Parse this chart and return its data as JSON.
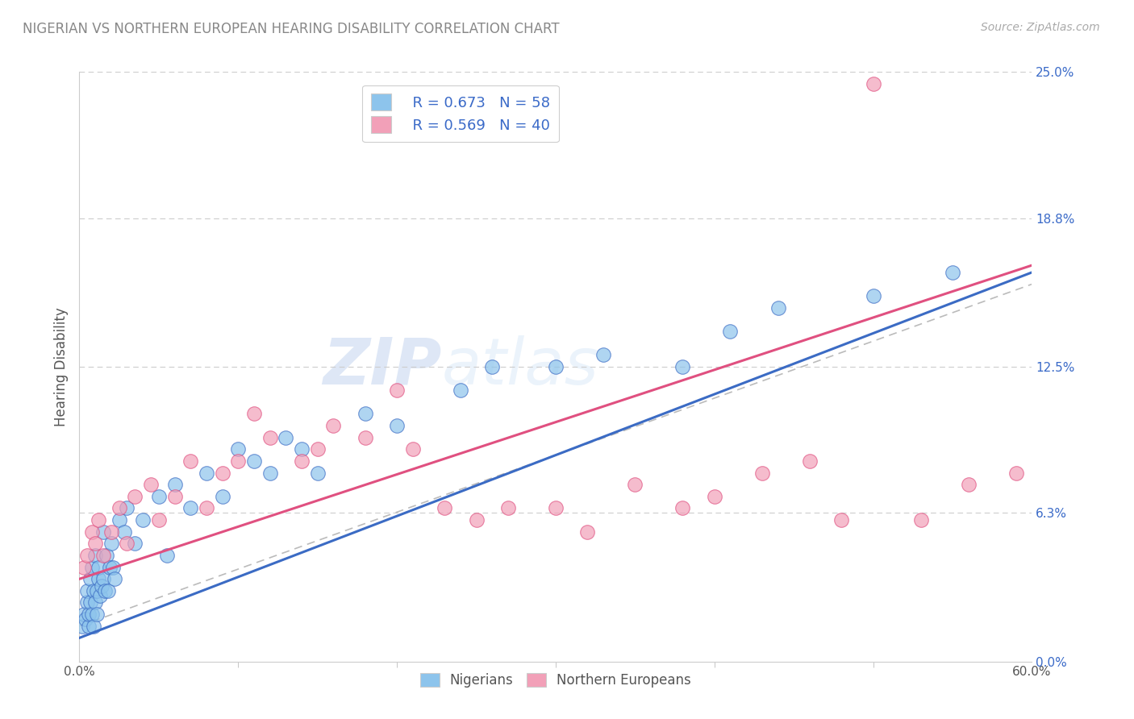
{
  "title": "NIGERIAN VS NORTHERN EUROPEAN HEARING DISABILITY CORRELATION CHART",
  "source": "Source: ZipAtlas.com",
  "ylabel": "Hearing Disability",
  "y_ticks": [
    "0.0%",
    "6.3%",
    "12.5%",
    "18.8%",
    "25.0%"
  ],
  "y_tick_vals": [
    0.0,
    6.3,
    12.5,
    18.8,
    25.0
  ],
  "x_lim": [
    0.0,
    60.0
  ],
  "y_lim": [
    0.0,
    25.0
  ],
  "legend_r1": "R = 0.673",
  "legend_n1": "N = 58",
  "legend_r2": "R = 0.569",
  "legend_n2": "N = 40",
  "color_blue": "#8DC4EC",
  "color_pink": "#F2A0B8",
  "color_blue_line": "#3B6BC4",
  "color_pink_line": "#E05080",
  "watermark_zip": "ZIP",
  "watermark_atlas": "atlas",
  "nig_x": [
    0.2,
    0.3,
    0.4,
    0.5,
    0.5,
    0.6,
    0.6,
    0.7,
    0.7,
    0.8,
    0.8,
    0.9,
    0.9,
    1.0,
    1.0,
    1.1,
    1.1,
    1.2,
    1.2,
    1.3,
    1.4,
    1.5,
    1.5,
    1.6,
    1.7,
    1.8,
    1.9,
    2.0,
    2.1,
    2.2,
    2.5,
    2.8,
    3.0,
    3.5,
    4.0,
    5.0,
    5.5,
    6.0,
    7.0,
    8.0,
    9.0,
    10.0,
    11.0,
    12.0,
    13.0,
    14.0,
    15.0,
    18.0,
    20.0,
    24.0,
    26.0,
    30.0,
    33.0,
    38.0,
    41.0,
    44.0,
    50.0,
    55.0
  ],
  "nig_y": [
    1.5,
    2.0,
    1.8,
    2.5,
    3.0,
    1.5,
    2.0,
    2.5,
    3.5,
    2.0,
    4.0,
    1.5,
    3.0,
    2.5,
    4.5,
    3.0,
    2.0,
    3.5,
    4.0,
    2.8,
    3.2,
    3.5,
    5.5,
    3.0,
    4.5,
    3.0,
    4.0,
    5.0,
    4.0,
    3.5,
    6.0,
    5.5,
    6.5,
    5.0,
    6.0,
    7.0,
    4.5,
    7.5,
    6.5,
    8.0,
    7.0,
    9.0,
    8.5,
    8.0,
    9.5,
    9.0,
    8.0,
    10.5,
    10.0,
    11.5,
    12.5,
    12.5,
    13.0,
    12.5,
    14.0,
    15.0,
    15.5,
    16.5
  ],
  "nor_x": [
    0.3,
    0.5,
    0.8,
    1.0,
    1.2,
    1.5,
    2.0,
    2.5,
    3.0,
    3.5,
    4.5,
    5.0,
    6.0,
    7.0,
    8.0,
    9.0,
    10.0,
    11.0,
    12.0,
    14.0,
    15.0,
    16.0,
    18.0,
    20.0,
    21.0,
    23.0,
    25.0,
    27.0,
    30.0,
    32.0,
    35.0,
    38.0,
    40.0,
    43.0,
    46.0,
    48.0,
    50.0,
    53.0,
    56.0,
    59.0
  ],
  "nor_y": [
    4.0,
    4.5,
    5.5,
    5.0,
    6.0,
    4.5,
    5.5,
    6.5,
    5.0,
    7.0,
    7.5,
    6.0,
    7.0,
    8.5,
    6.5,
    8.0,
    8.5,
    10.5,
    9.5,
    8.5,
    9.0,
    10.0,
    9.5,
    11.5,
    9.0,
    6.5,
    6.0,
    6.5,
    6.5,
    5.5,
    7.5,
    6.5,
    7.0,
    8.0,
    8.5,
    6.0,
    24.5,
    6.0,
    7.5,
    8.0
  ],
  "nig_line_x0": 0.0,
  "nig_line_y0": 1.0,
  "nig_line_x1": 60.0,
  "nig_line_y1": 16.5,
  "nor_line_x0": 0.0,
  "nor_line_y0": 3.5,
  "nor_line_x1": 60.0,
  "nor_line_y1": 16.8,
  "ref_line_x0": 0.0,
  "ref_line_y0": 1.5,
  "ref_line_x1": 60.0,
  "ref_line_y1": 16.0
}
